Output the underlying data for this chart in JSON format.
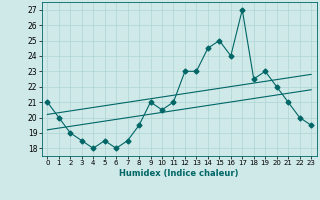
{
  "title": "",
  "xlabel": "Humidex (Indice chaleur)",
  "xlim": [
    -0.5,
    23.5
  ],
  "ylim": [
    17.5,
    27.5
  ],
  "xticks": [
    0,
    1,
    2,
    3,
    4,
    5,
    6,
    7,
    8,
    9,
    10,
    11,
    12,
    13,
    14,
    15,
    16,
    17,
    18,
    19,
    20,
    21,
    22,
    23
  ],
  "yticks": [
    18,
    19,
    20,
    21,
    22,
    23,
    24,
    25,
    26,
    27
  ],
  "bg_color": "#cfe8e8",
  "grid_color": "#b0d4d4",
  "line_color": "#006666",
  "line1_x": [
    0,
    1,
    2,
    3,
    4,
    5,
    6,
    7,
    8,
    9,
    10,
    11,
    12,
    13,
    14,
    15,
    16,
    17,
    18,
    19,
    20,
    21,
    22,
    23
  ],
  "line1_y": [
    21,
    20,
    19,
    18.5,
    18,
    18.5,
    18,
    18.5,
    19.5,
    21,
    20.5,
    21,
    23,
    23,
    24.5,
    25,
    24,
    27,
    22.5,
    23,
    22,
    21,
    20,
    19.5
  ],
  "line2_x": [
    0,
    23
  ],
  "line2_y": [
    20.2,
    22.8
  ],
  "line3_x": [
    0,
    23
  ],
  "line3_y": [
    19.2,
    21.8
  ],
  "marker": "D",
  "markersize": 2.5,
  "linewidth": 0.8
}
